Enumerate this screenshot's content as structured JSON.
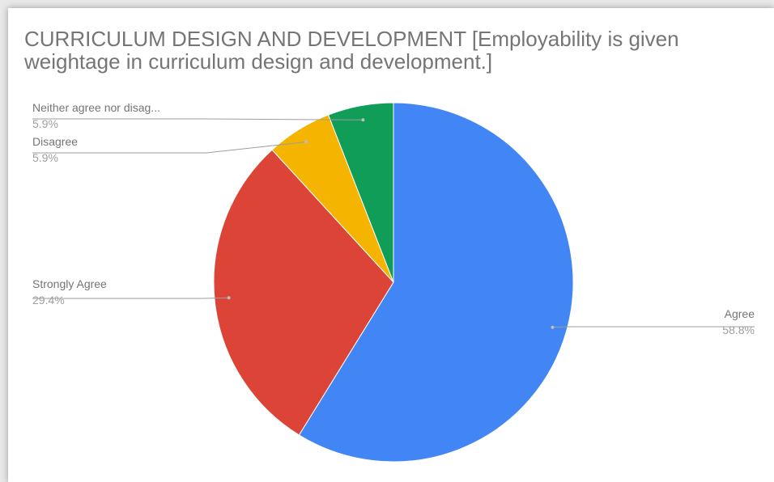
{
  "chart_data": {
    "type": "pie",
    "title": "CURRICULUM DESIGN AND DEVELOPMENT  [Employability is given weightage in curriculum design and development.]",
    "categories": [
      "Agree",
      "Strongly Agree",
      "Disagree",
      "Neither agree nor disag..."
    ],
    "values": [
      58.8,
      29.4,
      5.9,
      5.9
    ],
    "value_labels": [
      "58.8%",
      "29.4%",
      "5.9%",
      "5.9%"
    ],
    "colors": [
      "#4285f4",
      "#db4437",
      "#f4b400",
      "#0f9d58"
    ]
  }
}
